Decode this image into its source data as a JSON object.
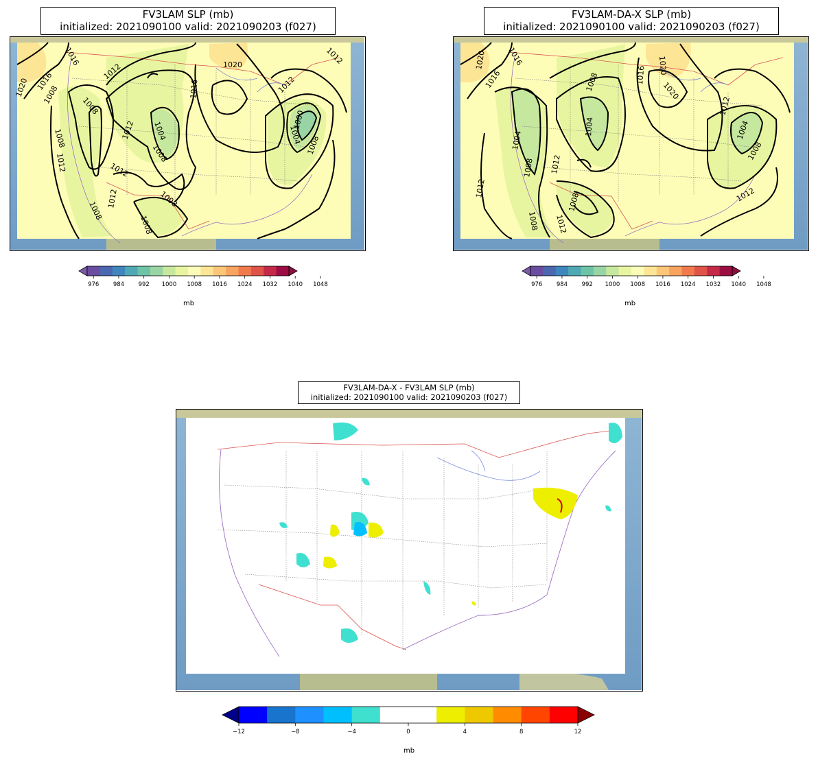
{
  "panels": [
    {
      "id": "fv3lam",
      "title_line1": "FV3LAM SLP (mb)",
      "title_line2": "initialized: 2021090100 valid: 2021090203 (f027)",
      "contour_labels": [
        "1016",
        "1008",
        "1012",
        "1020",
        "1016",
        "1012",
        "1008",
        "1008",
        "1004",
        "1012",
        "1008",
        "1012",
        "1012",
        "1008",
        "1008",
        "1008",
        "1016",
        "1020",
        "1012",
        "1012",
        "1004",
        "1000",
        "1008"
      ],
      "colorbar": {
        "ticks": [
          "976",
          "984",
          "992",
          "1000",
          "1008",
          "1016",
          "1024",
          "1032",
          "1040",
          "1048"
        ],
        "label": "mb",
        "colors": [
          "#6a4ca0",
          "#4a67b0",
          "#3f86bd",
          "#50a8b5",
          "#6cc3a5",
          "#99d5a4",
          "#c6e89e",
          "#e8f5a0",
          "#fbfcb8",
          "#fde596",
          "#fcc678",
          "#f8a45f",
          "#f17a4d",
          "#df5348",
          "#c42a48",
          "#9b0d43"
        ],
        "under_color": "#7b5aa8",
        "over_color": "#8e0e40"
      }
    },
    {
      "id": "fv3lam-da-x",
      "title_line1": "FV3LAM-DA-X SLP (mb)",
      "title_line2": "initialized: 2021090100 valid: 2021090203 (f027)",
      "contour_labels": [
        "1020",
        "1016",
        "1016",
        "1008",
        "1016",
        "1020",
        "1020",
        "1012",
        "1004",
        "1004",
        "1004",
        "1012",
        "1008",
        "1012",
        "1008",
        "1008",
        "1012",
        "1012",
        "1008"
      ],
      "colorbar": {
        "ticks": [
          "976",
          "984",
          "992",
          "1000",
          "1008",
          "1016",
          "1024",
          "1032",
          "1040",
          "1048"
        ],
        "label": "mb",
        "colors": [
          "#6a4ca0",
          "#4a67b0",
          "#3f86bd",
          "#50a8b5",
          "#6cc3a5",
          "#99d5a4",
          "#c6e89e",
          "#e8f5a0",
          "#fbfcb8",
          "#fde596",
          "#fcc678",
          "#f8a45f",
          "#f17a4d",
          "#df5348",
          "#c42a48",
          "#9b0d43"
        ],
        "under_color": "#7b5aa8",
        "over_color": "#8e0e40"
      }
    },
    {
      "id": "difference",
      "title_line1": "FV3LAM-DA-X - FV3LAM SLP (mb)",
      "title_line2": "initialized: 2021090100 valid: 2021090203 (f027)",
      "colorbar": {
        "ticks": [
          "−12",
          "−8",
          "−4",
          "0",
          "4",
          "8",
          "12"
        ],
        "label": "mb",
        "colors": [
          "#0000ff",
          "#1874cd",
          "#1e90ff",
          "#00bfff",
          "#40e0d0",
          "#ffffff",
          "#ffffff",
          "#eeee00",
          "#eec900",
          "#ff8c00",
          "#ff4500",
          "#ff0000"
        ],
        "under_color": "#00008b",
        "over_color": "#8b0000"
      }
    }
  ]
}
